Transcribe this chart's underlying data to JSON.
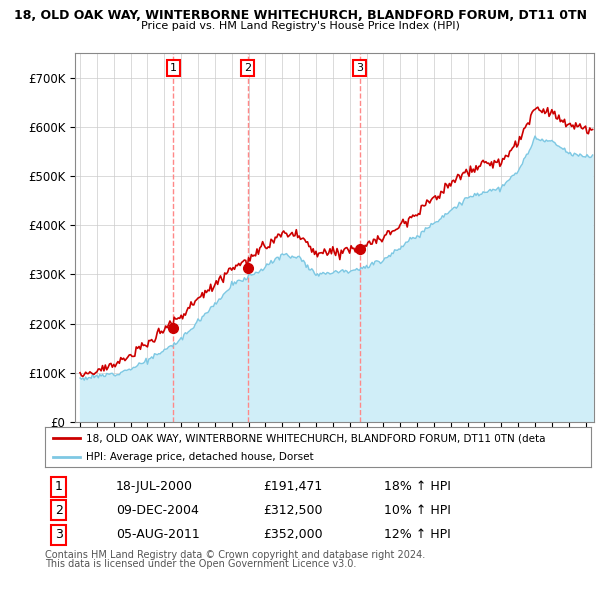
{
  "title1": "18, OLD OAK WAY, WINTERBORNE WHITECHURCH, BLANDFORD FORUM, DT11 0TN",
  "title2": "Price paid vs. HM Land Registry's House Price Index (HPI)",
  "ylim": [
    0,
    750000
  ],
  "yticks": [
    0,
    100000,
    200000,
    300000,
    400000,
    500000,
    600000,
    700000
  ],
  "ytick_labels": [
    "£0",
    "£100K",
    "£200K",
    "£300K",
    "£400K",
    "£500K",
    "£600K",
    "£700K"
  ],
  "sale_dates": [
    2000.54,
    2004.94,
    2011.59
  ],
  "sale_prices": [
    191471,
    312500,
    352000
  ],
  "sale_labels": [
    "1",
    "2",
    "3"
  ],
  "legend_line1": "18, OLD OAK WAY, WINTERBORNE WHITECHURCH, BLANDFORD FORUM, DT11 0TN (deta",
  "legend_line2": "HPI: Average price, detached house, Dorset",
  "table_data": [
    [
      "1",
      "18-JUL-2000",
      "£191,471",
      "18% ↑ HPI"
    ],
    [
      "2",
      "09-DEC-2004",
      "£312,500",
      "10% ↑ HPI"
    ],
    [
      "3",
      "05-AUG-2011",
      "£352,000",
      "12% ↑ HPI"
    ]
  ],
  "footnote1": "Contains HM Land Registry data © Crown copyright and database right 2024.",
  "footnote2": "This data is licensed under the Open Government Licence v3.0.",
  "hpi_color": "#A8D8EA",
  "hpi_fill_color": "#D0EEF8",
  "hpi_line_color": "#7EC8E3",
  "price_color": "#CC0000",
  "vline_color": "#FF8888",
  "background_color": "#FFFFFF",
  "hpi_key_years": [
    1995,
    1996,
    1997,
    1998,
    1999,
    2000,
    2001,
    2002,
    2003,
    2004,
    2005,
    2006,
    2007,
    2008,
    2009,
    2010,
    2011,
    2012,
    2013,
    2014,
    2015,
    2016,
    2017,
    2018,
    2019,
    2020,
    2021,
    2022,
    2023,
    2024,
    2025
  ],
  "hpi_key_vals": [
    88000,
    92000,
    98000,
    108000,
    125000,
    145000,
    168000,
    205000,
    240000,
    278000,
    295000,
    315000,
    340000,
    335000,
    300000,
    305000,
    308000,
    315000,
    330000,
    355000,
    378000,
    405000,
    430000,
    455000,
    468000,
    475000,
    510000,
    575000,
    570000,
    545000,
    540000
  ]
}
